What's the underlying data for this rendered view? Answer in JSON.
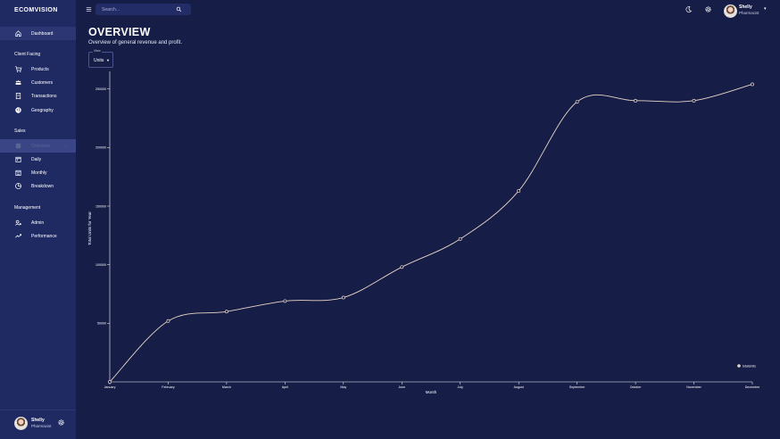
{
  "app": {
    "brand": "ECOMVISION"
  },
  "sidebar": {
    "dashboard": "Dashboard",
    "sections": {
      "client": "Client Facing",
      "sales": "Sales",
      "management": "Management"
    },
    "items": {
      "products": "Products",
      "customers": "Customers",
      "transactions": "Transactions",
      "geography": "Geography",
      "overview": "Overview",
      "daily": "Daily",
      "monthly": "Monthly",
      "breakdown": "Breakdown",
      "admin": "Admin",
      "performance": "Performance"
    },
    "user": {
      "name": "Shelly",
      "role": "Pharmacist"
    }
  },
  "topbar": {
    "search_placeholder": "Search...",
    "user": {
      "name": "Shelly",
      "role": "Pharmacist"
    }
  },
  "header": {
    "title": "OVERVIEW",
    "subtitle": "Overview of general revenue and profit."
  },
  "view_select": {
    "caption": "View",
    "value": "Units"
  },
  "colors": {
    "line": "#e8d6c8",
    "axis": "#ffffff",
    "background": "#161d47",
    "sidebar": "#1f2a63"
  },
  "chart_data": {
    "type": "line",
    "categories": [
      "January",
      "February",
      "March",
      "April",
      "May",
      "June",
      "July",
      "August",
      "September",
      "October",
      "November",
      "December"
    ],
    "series": [
      {
        "name": "totalUnits",
        "values": [
          0,
          52000,
          60000,
          69000,
          72000,
          98000,
          122000,
          163000,
          239000,
          240000,
          240000,
          254000
        ]
      }
    ],
    "xlabel": "Month",
    "ylabel": "Total Units for Year",
    "yticks": [
      50000,
      100000,
      150000,
      200000,
      250000
    ],
    "ylim": [
      0,
      265000
    ],
    "legend": "bottom-right",
    "grid": false
  }
}
